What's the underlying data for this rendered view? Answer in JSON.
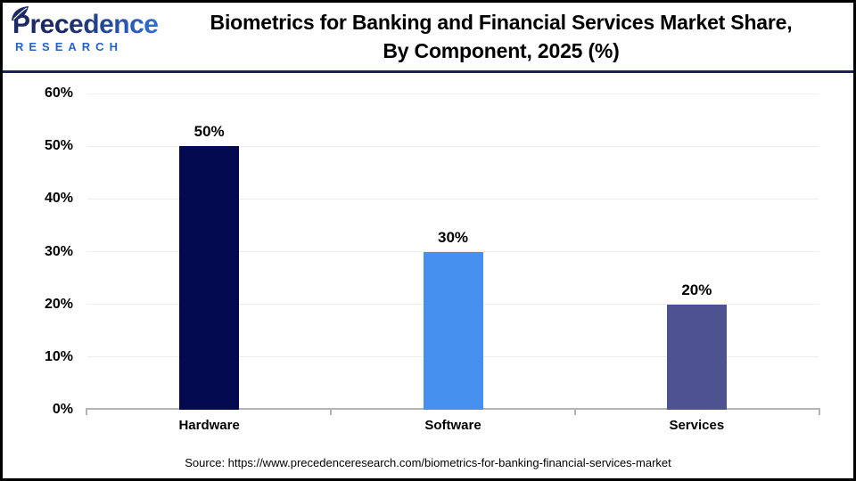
{
  "logo": {
    "brand": "Precedence",
    "subtitle": "RESEARCH",
    "brand_color_dark": "#1b2a66",
    "brand_color_light": "#2e6fd6",
    "subtitle_color": "#2563c9"
  },
  "header": {
    "title_line1": "Biometrics for Banking and Financial Services Market Share,",
    "title_line2": "By Component, 2025 (%)"
  },
  "chart_data": {
    "type": "bar",
    "title": "Biometrics for Banking and Financial Services Market Share, By Component, 2025 (%)",
    "categories": [
      "Hardware",
      "Software",
      "Services"
    ],
    "values": [
      50,
      30,
      20
    ],
    "value_labels": [
      "50%",
      "30%",
      "20%"
    ],
    "bar_colors": [
      "#03094e",
      "#4590ee",
      "#4d5390"
    ],
    "xlabel": "",
    "ylabel": "",
    "ylim": [
      0,
      60
    ],
    "yticks": [
      0,
      10,
      20,
      30,
      40,
      50,
      60
    ],
    "ytick_labels": [
      "0%",
      "10%",
      "20%",
      "30%",
      "40%",
      "50%",
      "60%"
    ],
    "grid": true,
    "gridline_color": "#ededed",
    "axis_color": "#b3b3b3",
    "legend": false
  },
  "footer": {
    "source": "Source: https://www.precedenceresearch.com/biometrics-for-banking-financial-services-market"
  }
}
